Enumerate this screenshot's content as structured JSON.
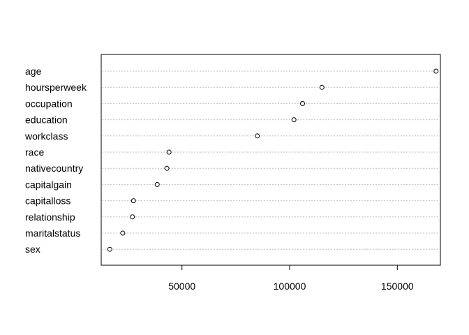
{
  "chart_data": {
    "type": "scatter",
    "title": "",
    "xlabel": "",
    "ylabel": "",
    "categories": [
      "age",
      "hoursperweek",
      "occupation",
      "education",
      "workclass",
      "race",
      "nativecountry",
      "capitalgain",
      "capitalloss",
      "relationship",
      "maritalstatus",
      "sex"
    ],
    "values": [
      168000,
      115000,
      106000,
      102000,
      85000,
      44000,
      43000,
      38500,
      27500,
      27000,
      22500,
      16500
    ],
    "xlim": [
      12500,
      170000
    ],
    "xticks": [
      50000,
      100000,
      150000
    ],
    "xtick_labels": [
      "50000",
      "100000",
      "150000"
    ],
    "grid": "dotted horizontal lines per category",
    "marker": "open circle",
    "colors": {
      "frame": "#000000",
      "grid": "#bebebe",
      "marker": "#000000"
    }
  }
}
